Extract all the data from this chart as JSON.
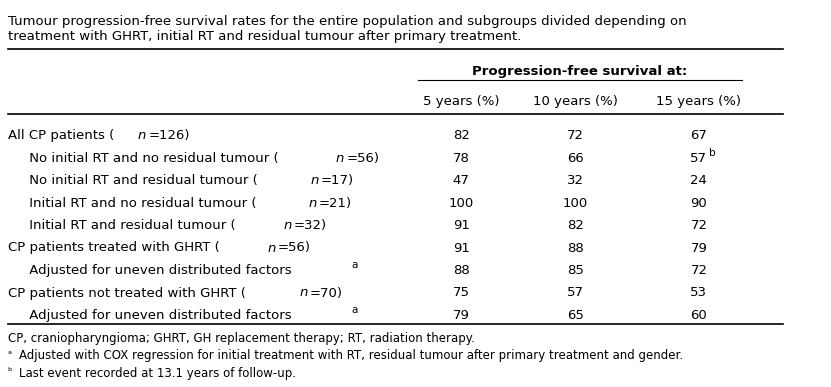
{
  "title_line1": "Tumour progression-free survival rates for the entire population and subgroups divided depending on",
  "title_line2": "treatment with GHRT, initial RT and residual tumour after primary treatment.",
  "header_main": "Progression-free survival at:",
  "col_headers": [
    "5 years (%)",
    "10 years (%)",
    "15 years (%)"
  ],
  "rows": [
    {
      "label": "All CP patients (",
      "italic_part": "n",
      "label2": "=126)",
      "indent": 0,
      "vals": [
        "82",
        "72",
        "67"
      ],
      "superscript": [
        "",
        "",
        ""
      ]
    },
    {
      "label": " No initial RT and no residual tumour (",
      "italic_part": "n",
      "label2": "=56)",
      "indent": 1,
      "vals": [
        "78",
        "66",
        "57"
      ],
      "superscript": [
        "",
        "",
        "b"
      ]
    },
    {
      "label": " No initial RT and residual tumour (",
      "italic_part": "n",
      "label2": "=17)",
      "indent": 1,
      "vals": [
        "47",
        "32",
        "24"
      ],
      "superscript": [
        "",
        "",
        ""
      ]
    },
    {
      "label": " Initial RT and no residual tumour (",
      "italic_part": "n",
      "label2": "=21)",
      "indent": 1,
      "vals": [
        "100",
        "100",
        "90"
      ],
      "superscript": [
        "",
        "",
        ""
      ]
    },
    {
      "label": " Initial RT and residual tumour (",
      "italic_part": "n",
      "label2": "=32)",
      "indent": 1,
      "vals": [
        "91",
        "82",
        "72"
      ],
      "superscript": [
        "",
        "",
        ""
      ]
    },
    {
      "label": "CP patients treated with GHRT (",
      "italic_part": "n",
      "label2": "=56)",
      "indent": 0,
      "vals": [
        "91",
        "88",
        "79"
      ],
      "superscript": [
        "",
        "",
        ""
      ]
    },
    {
      "label": " Adjusted for uneven distributed factors",
      "italic_part": "",
      "label2": "",
      "indent": 1,
      "vals": [
        "88",
        "85",
        "72"
      ],
      "superscript": [
        "",
        "",
        ""
      ],
      "footnote_a": true
    },
    {
      "label": "CP patients not treated with GHRT (",
      "italic_part": "n",
      "label2": "=70)",
      "indent": 0,
      "vals": [
        "75",
        "57",
        "53"
      ],
      "superscript": [
        "",
        "",
        ""
      ]
    },
    {
      "label": " Adjusted for uneven distributed factors",
      "italic_part": "",
      "label2": "",
      "indent": 1,
      "vals": [
        "79",
        "65",
        "60"
      ],
      "superscript": [
        "",
        "",
        ""
      ],
      "footnote_a": true
    }
  ],
  "footnotes": [
    "CP, craniopharyngioma; GHRT, GH replacement therapy; RT, radiation therapy.",
    "ᵃAdjusted with COX regression for initial treatment with RT, residual tumour after primary treatment and gender.",
    "ᵇLast event recorded at 13.1 years of follow-up."
  ],
  "bg_color": "#ffffff",
  "text_color": "#000000",
  "font_size": 9.5,
  "title_font_size": 9.5
}
